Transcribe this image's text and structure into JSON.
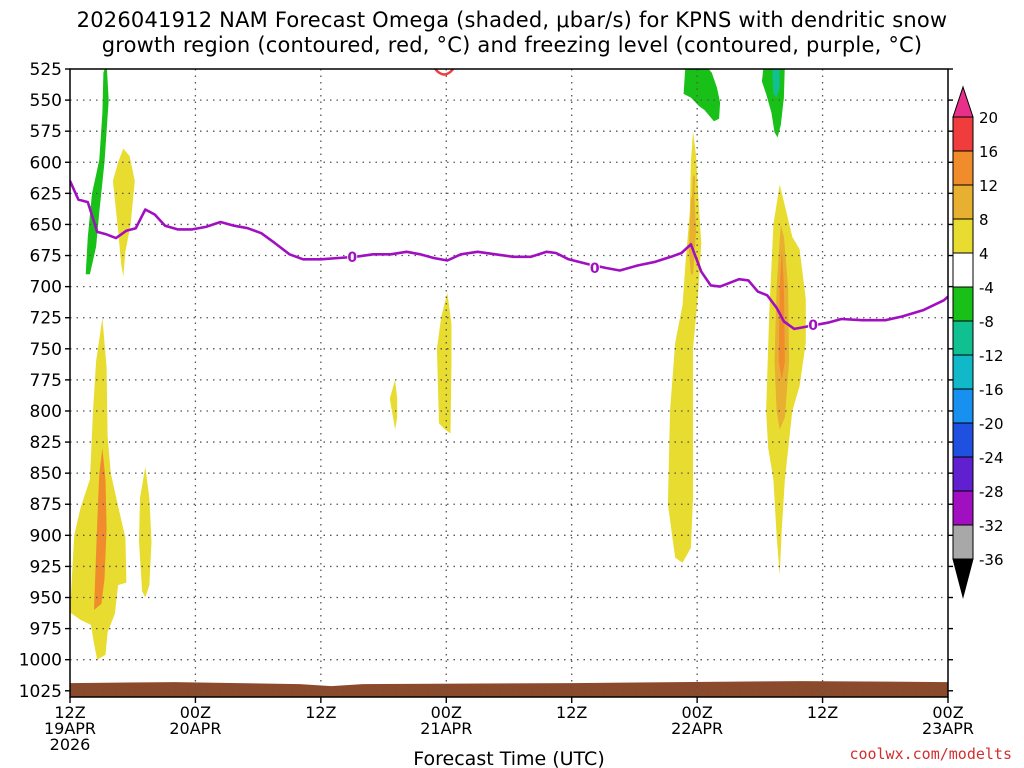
{
  "title_line1": "2026041912 NAM Forecast Omega (shaded, μbar/s) for KPNS with dendritic snow",
  "title_line2": "growth region (contoured, red, °C) and freezing level (contoured, purple, °C)",
  "credit": "coolwx.com/modelts",
  "chart_data": {
    "type": "heatmap",
    "xlabel": "Forecast Time (UTC)",
    "ylabel": "",
    "x_hours_range": [
      0,
      84
    ],
    "ylim": [
      1030,
      525
    ],
    "y_ticks": [
      525,
      550,
      575,
      600,
      625,
      650,
      675,
      700,
      725,
      750,
      775,
      800,
      825,
      850,
      875,
      900,
      925,
      950,
      975,
      1000,
      1025
    ],
    "x_ticks": [
      {
        "h": 0,
        "lines": [
          "12Z",
          "19APR",
          "2026"
        ]
      },
      {
        "h": 12,
        "lines": [
          "00Z",
          "20APR"
        ]
      },
      {
        "h": 24,
        "lines": [
          "12Z"
        ]
      },
      {
        "h": 36,
        "lines": [
          "00Z",
          "21APR"
        ]
      },
      {
        "h": 48,
        "lines": [
          "12Z"
        ]
      },
      {
        "h": 60,
        "lines": [
          "00Z",
          "22APR"
        ]
      },
      {
        "h": 72,
        "lines": [
          "12Z"
        ]
      },
      {
        "h": 84,
        "lines": [
          "00Z",
          "23APR"
        ]
      }
    ],
    "colorbar": {
      "labels": [
        "20",
        "16",
        "12",
        "8",
        "4",
        "-4",
        "-8",
        "-12",
        "-16",
        "-20",
        "-24",
        "-28",
        "-32",
        "-36"
      ],
      "colors": [
        "#e8308a",
        "#f03c3c",
        "#f08c2c",
        "#e8b030",
        "#e8dc30",
        "#ffffff",
        "#18c018",
        "#10c090",
        "#10b8c8",
        "#1890f0",
        "#2050e0",
        "#6020d0",
        "#a010c0",
        "#a8a8a8",
        "#000000"
      ]
    },
    "freezing_level": {
      "label": "0",
      "color": "#a010c0",
      "points": [
        [
          0,
          615
        ],
        [
          0.8,
          630
        ],
        [
          1.7,
          632
        ],
        [
          2.6,
          656
        ],
        [
          3.5,
          658
        ],
        [
          4.4,
          661
        ],
        [
          5.4,
          655
        ],
        [
          6.3,
          653
        ],
        [
          7.2,
          638
        ],
        [
          8.1,
          642
        ],
        [
          9.1,
          651
        ],
        [
          10.3,
          654
        ],
        [
          11.7,
          654
        ],
        [
          13,
          652
        ],
        [
          14.4,
          648
        ],
        [
          15.7,
          651
        ],
        [
          17,
          653
        ],
        [
          18.3,
          657
        ],
        [
          19.6,
          665
        ],
        [
          21,
          674
        ],
        [
          22.3,
          678
        ],
        [
          24,
          678
        ],
        [
          25.7,
          677
        ],
        [
          27.3,
          676
        ],
        [
          29,
          674
        ],
        [
          30.7,
          674
        ],
        [
          32.2,
          672
        ],
        [
          33.5,
          674
        ],
        [
          34.8,
          677
        ],
        [
          36.1,
          679
        ],
        [
          37.4,
          674
        ],
        [
          39,
          672
        ],
        [
          40.7,
          674
        ],
        [
          42.4,
          676
        ],
        [
          44.1,
          676
        ],
        [
          45.6,
          672
        ],
        [
          46.5,
          673
        ],
        [
          47.7,
          678
        ],
        [
          49.6,
          682
        ],
        [
          51.3,
          685
        ],
        [
          52.6,
          687
        ],
        [
          54.3,
          683
        ],
        [
          56,
          680
        ],
        [
          57.5,
          676
        ],
        [
          58.5,
          673
        ],
        [
          59.4,
          666
        ],
        [
          60.4,
          688
        ],
        [
          61.3,
          699
        ],
        [
          62.2,
          700
        ],
        [
          63.1,
          697
        ],
        [
          64,
          694
        ],
        [
          64.9,
          695
        ],
        [
          65.8,
          704
        ],
        [
          66.7,
          707
        ],
        [
          67.6,
          717
        ],
        [
          68.3,
          728
        ],
        [
          69.3,
          734
        ],
        [
          70.6,
          732
        ],
        [
          72.5,
          729
        ],
        [
          73.8,
          726
        ],
        [
          75.8,
          727
        ],
        [
          78,
          727
        ],
        [
          79.6,
          724
        ],
        [
          81.6,
          719
        ],
        [
          83.6,
          711
        ],
        [
          84,
          708
        ]
      ]
    },
    "surface_fill": {
      "color": "#8b4a2c",
      "from_hpa": 1018,
      "to_hpa": 1030
    },
    "dgz_contour": {
      "color": "#f03c3c",
      "center_h": 35.8,
      "p_top": 525,
      "p_bottom": 529
    },
    "regions": [
      {
        "color": "#e8dc30",
        "points": [
          [
            0,
            962
          ],
          [
            0.4,
            900
          ],
          [
            1,
            878
          ],
          [
            1.9,
            855
          ],
          [
            2.2,
            800
          ],
          [
            2.5,
            760
          ],
          [
            3.1,
            725
          ],
          [
            3.5,
            765
          ],
          [
            3.6,
            820
          ],
          [
            3.9,
            850
          ],
          [
            4.7,
            880
          ],
          [
            5.3,
            902
          ],
          [
            5.4,
            938
          ],
          [
            4.6,
            940
          ],
          [
            4.3,
            963
          ],
          [
            3.6,
            978
          ],
          [
            3.4,
            996
          ],
          [
            2.6,
            1000
          ],
          [
            2.3,
            987
          ],
          [
            2,
            972
          ],
          [
            1,
            968
          ]
        ]
      },
      {
        "color": "#f08c2c",
        "points": [
          [
            2.3,
            960
          ],
          [
            2.6,
            890
          ],
          [
            2.8,
            850
          ],
          [
            3.1,
            830
          ],
          [
            3.4,
            855
          ],
          [
            3.5,
            895
          ],
          [
            3.3,
            935
          ],
          [
            3,
            955
          ]
        ]
      },
      {
        "color": "#e8dc30",
        "points": [
          [
            6.6,
            905
          ],
          [
            6.7,
            870
          ],
          [
            7.2,
            845
          ],
          [
            7.6,
            870
          ],
          [
            7.8,
            905
          ],
          [
            7.6,
            940
          ],
          [
            7.2,
            950
          ],
          [
            6.9,
            945
          ]
        ]
      },
      {
        "color": "#e8dc30",
        "points": [
          [
            4.1,
            615
          ],
          [
            4.6,
            600
          ],
          [
            5.1,
            589
          ],
          [
            5.7,
            595
          ],
          [
            6.2,
            615
          ],
          [
            5.8,
            650
          ],
          [
            5.3,
            672
          ],
          [
            5.1,
            692
          ],
          [
            4.9,
            682
          ],
          [
            4.6,
            655
          ]
        ]
      },
      {
        "color": "#18c018",
        "points": [
          [
            1.5,
            690
          ],
          [
            1.7,
            660
          ],
          [
            2.1,
            625
          ],
          [
            2.5,
            610
          ],
          [
            2.8,
            598
          ],
          [
            3.1,
            560
          ],
          [
            3.2,
            528
          ],
          [
            3.5,
            520
          ],
          [
            3.7,
            550
          ],
          [
            3.3,
            600
          ],
          [
            2.8,
            640
          ],
          [
            2.5,
            668
          ],
          [
            1.9,
            690
          ]
        ]
      },
      {
        "color": "#e8dc30",
        "points": [
          [
            30.6,
            790
          ],
          [
            31.1,
            775
          ],
          [
            31.3,
            790
          ],
          [
            31.3,
            805
          ],
          [
            31.1,
            815
          ],
          [
            30.8,
            800
          ]
        ]
      },
      {
        "color": "#e8dc30",
        "points": [
          [
            35.1,
            750
          ],
          [
            35.5,
            725
          ],
          [
            36.1,
            705
          ],
          [
            36.5,
            730
          ],
          [
            36.5,
            760
          ],
          [
            36.4,
            818
          ],
          [
            35.9,
            815
          ],
          [
            35.3,
            810
          ]
        ]
      },
      {
        "color": "#e8dc30",
        "points": [
          [
            57.2,
            875
          ],
          [
            57.4,
            800
          ],
          [
            57.9,
            745
          ],
          [
            58.6,
            715
          ],
          [
            58.9,
            680
          ],
          [
            59.3,
            640
          ],
          [
            59.4,
            600
          ],
          [
            59.6,
            575
          ],
          [
            59.9,
            595
          ],
          [
            60.2,
            640
          ],
          [
            60.4,
            665
          ],
          [
            60.1,
            705
          ],
          [
            59.6,
            750
          ],
          [
            59.6,
            800
          ],
          [
            59.6,
            870
          ],
          [
            59.4,
            910
          ],
          [
            58.6,
            922
          ],
          [
            57.9,
            918
          ],
          [
            57.6,
            900
          ]
        ]
      },
      {
        "color": "#e8b030",
        "points": [
          [
            59.2,
            670
          ],
          [
            59.4,
            630
          ],
          [
            59.7,
            620
          ],
          [
            59.9,
            655
          ],
          [
            59.6,
            690
          ],
          [
            59.4,
            690
          ]
        ]
      },
      {
        "color": "#e8b030",
        "points": [
          [
            59.5,
            630
          ],
          [
            59.6,
            610
          ],
          [
            59.8,
            612
          ],
          [
            59.7,
            632
          ]
        ]
      },
      {
        "color": "#e8dc30",
        "points": [
          [
            66.6,
            800
          ],
          [
            66.9,
            720
          ],
          [
            67.3,
            650
          ],
          [
            67.9,
            618
          ],
          [
            68.4,
            635
          ],
          [
            69.1,
            660
          ],
          [
            69.8,
            670
          ],
          [
            70.4,
            710
          ],
          [
            70.4,
            745
          ],
          [
            69.8,
            780
          ],
          [
            69.1,
            800
          ],
          [
            68.4,
            855
          ],
          [
            68.1,
            895
          ],
          [
            67.9,
            932
          ],
          [
            67.6,
            900
          ],
          [
            67.3,
            855
          ],
          [
            66.8,
            830
          ]
        ]
      },
      {
        "color": "#e8b030",
        "points": [
          [
            67.4,
            760
          ],
          [
            67.6,
            700
          ],
          [
            68,
            650
          ],
          [
            68.3,
            660
          ],
          [
            68.7,
            700
          ],
          [
            68.8,
            760
          ],
          [
            68.4,
            805
          ],
          [
            67.9,
            815
          ],
          [
            67.6,
            800
          ]
        ]
      },
      {
        "color": "#f08c2c",
        "points": [
          [
            67.8,
            760
          ],
          [
            67.9,
            700
          ],
          [
            68.1,
            670
          ],
          [
            68.3,
            700
          ],
          [
            68.4,
            760
          ],
          [
            68.1,
            775
          ]
        ]
      },
      {
        "color": "#18c018",
        "points": [
          [
            58.7,
            545
          ],
          [
            58.9,
            520
          ],
          [
            60.6,
            520
          ],
          [
            61.4,
            528
          ],
          [
            61.9,
            540
          ],
          [
            62.2,
            552
          ],
          [
            62.1,
            565
          ],
          [
            61.6,
            567
          ],
          [
            60.7,
            558
          ],
          [
            60.2,
            555
          ],
          [
            59.4,
            548
          ]
        ]
      },
      {
        "color": "#18c018",
        "points": [
          [
            66.2,
            535
          ],
          [
            66.4,
            520
          ],
          [
            68.4,
            520
          ],
          [
            68.3,
            548
          ],
          [
            68,
            570
          ],
          [
            67.7,
            580
          ],
          [
            67.4,
            576
          ],
          [
            67.1,
            560
          ],
          [
            66.6,
            545
          ]
        ]
      },
      {
        "color": "#10c090",
        "points": [
          [
            67.2,
            528
          ],
          [
            67.3,
            520
          ],
          [
            67.9,
            520
          ],
          [
            67.9,
            540
          ],
          [
            67.6,
            548
          ],
          [
            67.3,
            545
          ]
        ]
      }
    ]
  }
}
